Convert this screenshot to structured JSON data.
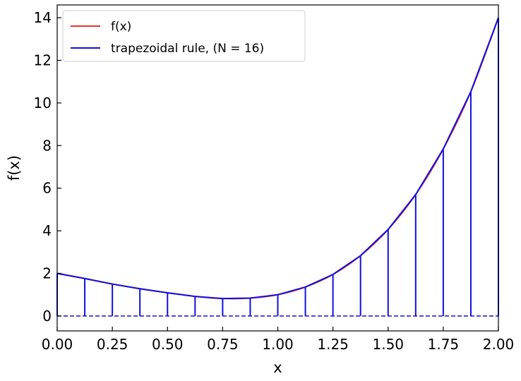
{
  "chart_data": {
    "type": "line",
    "xlabel": "x",
    "ylabel": "f(x)",
    "xlim": [
      0,
      2
    ],
    "ylim": [
      -0.7,
      14.6
    ],
    "x_ticks": [
      "0.00",
      "0.25",
      "0.50",
      "0.75",
      "1.00",
      "1.25",
      "1.50",
      "1.75",
      "2.00"
    ],
    "y_ticks": [
      "0",
      "2",
      "4",
      "6",
      "8",
      "10",
      "12",
      "14"
    ],
    "function": {
      "legend_label": "f(x)",
      "color": "#e8312b",
      "x": [
        0,
        0.125,
        0.25,
        0.375,
        0.5,
        0.625,
        0.75,
        0.875,
        1.0,
        1.125,
        1.25,
        1.375,
        1.5,
        1.625,
        1.75,
        1.875,
        2.0
      ],
      "y": [
        2.0,
        1.76,
        1.5,
        1.28,
        1.09,
        0.92,
        0.82,
        0.84,
        1.0,
        1.36,
        1.95,
        2.83,
        4.06,
        5.7,
        7.84,
        10.53,
        14.0
      ]
    },
    "trapezoid": {
      "legend_label": "trapezoidal rule, (N = 16)",
      "color": "#1010e0",
      "N": 16,
      "x": [
        0,
        0.125,
        0.25,
        0.375,
        0.5,
        0.625,
        0.75,
        0.875,
        1.0,
        1.125,
        1.25,
        1.375,
        1.5,
        1.625,
        1.75,
        1.875,
        2.0
      ],
      "y": [
        2.0,
        1.76,
        1.5,
        1.28,
        1.09,
        0.92,
        0.82,
        0.84,
        1.0,
        1.36,
        1.95,
        2.83,
        4.06,
        5.7,
        7.84,
        10.53,
        14.0
      ]
    },
    "legend_position": "upper-left",
    "grid": false
  }
}
